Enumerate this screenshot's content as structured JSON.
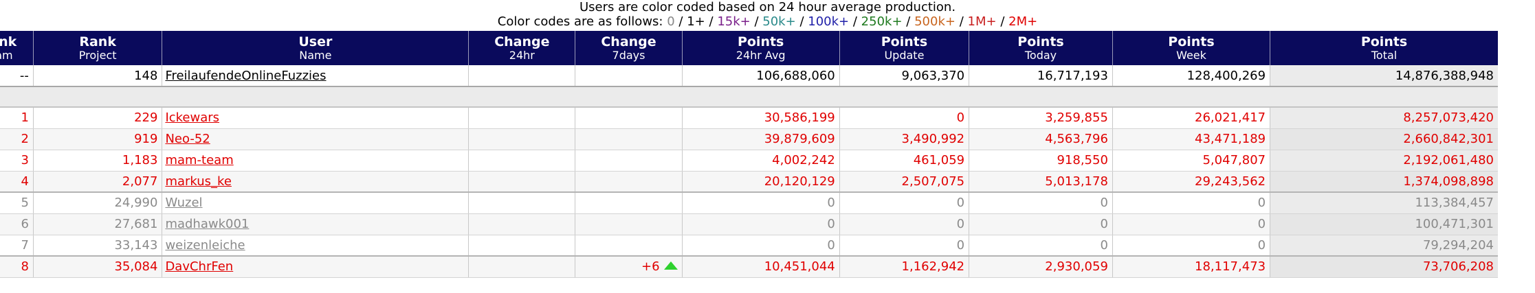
{
  "legend": {
    "line1": "Users are color coded based on 24 hour average production.",
    "prefix": "Color codes are as follows:",
    "codes": [
      {
        "label": "0",
        "color": "#888888"
      },
      {
        "label": "1+",
        "color": "#000000"
      },
      {
        "label": "15k+",
        "color": "#7a1f8a"
      },
      {
        "label": "50k+",
        "color": "#2a8a8a"
      },
      {
        "label": "100k+",
        "color": "#1f1fa8"
      },
      {
        "label": "250k+",
        "color": "#1f7a1f"
      },
      {
        "label": "500k+",
        "color": "#c8641e"
      },
      {
        "label": "1M+",
        "color": "#c81e1e"
      },
      {
        "label": "2M+",
        "color": "#e00000"
      }
    ]
  },
  "headers": [
    {
      "top": "Rank",
      "sub": "Team"
    },
    {
      "top": "Rank",
      "sub": "Project"
    },
    {
      "top": "User",
      "sub": "Name"
    },
    {
      "top": "Change",
      "sub": "24hr"
    },
    {
      "top": "Change",
      "sub": "7days"
    },
    {
      "top": "Points",
      "sub": "24hr Avg"
    },
    {
      "top": "Points",
      "sub": "Update"
    },
    {
      "top": "Points",
      "sub": "Today"
    },
    {
      "top": "Points",
      "sub": "Week"
    },
    {
      "top": "Points",
      "sub": "Total"
    }
  ],
  "team": {
    "rank_team": "--",
    "rank_project": "148",
    "name": "FreilaufendeOnlineFuzzies",
    "change24": "",
    "change7": "",
    "avg24": "106,688,060",
    "update": "9,063,370",
    "today": "16,717,193",
    "week": "128,400,269",
    "total": "14,876,388,948"
  },
  "rows": [
    {
      "rank_team": "1",
      "rank_project": "229",
      "name": "Ickewars",
      "change24": "",
      "change7": "",
      "avg24": "30,586,199",
      "update": "0",
      "today": "3,259,855",
      "week": "26,021,417",
      "total": "8,257,073,420"
    },
    {
      "rank_team": "2",
      "rank_project": "919",
      "name": "Neo-52",
      "change24": "",
      "change7": "",
      "avg24": "39,879,609",
      "update": "3,490,992",
      "today": "4,563,796",
      "week": "43,471,189",
      "total": "2,660,842,301"
    },
    {
      "rank_team": "3",
      "rank_project": "1,183",
      "name": "mam-team",
      "change24": "",
      "change7": "",
      "avg24": "4,002,242",
      "update": "461,059",
      "today": "918,550",
      "week": "5,047,807",
      "total": "2,192,061,480"
    },
    {
      "rank_team": "4",
      "rank_project": "2,077",
      "name": "markus_ke",
      "change24": "",
      "change7": "",
      "avg24": "20,120,129",
      "update": "2,507,075",
      "today": "5,013,178",
      "week": "29,243,562",
      "total": "1,374,098,898"
    },
    {
      "rank_team": "5",
      "rank_project": "24,990",
      "name": "Wuzel",
      "change24": "",
      "change7": "",
      "avg24": "0",
      "update": "0",
      "today": "0",
      "week": "0",
      "total": "113,384,457"
    },
    {
      "rank_team": "6",
      "rank_project": "27,681",
      "name": "madhawk001",
      "change24": "",
      "change7": "",
      "avg24": "0",
      "update": "0",
      "today": "0",
      "week": "0",
      "total": "100,471,301"
    },
    {
      "rank_team": "7",
      "rank_project": "33,143",
      "name": "weizenleiche",
      "change24": "",
      "change7": "",
      "avg24": "0",
      "update": "0",
      "today": "0",
      "week": "0",
      "total": "79,294,204"
    },
    {
      "rank_team": "8",
      "rank_project": "35,084",
      "name": "DavChrFen",
      "change24": "",
      "change7": "+6",
      "avg24": "10,451,044",
      "update": "1,162,942",
      "today": "2,930,059",
      "week": "18,117,473",
      "total": "73,706,208"
    }
  ]
}
